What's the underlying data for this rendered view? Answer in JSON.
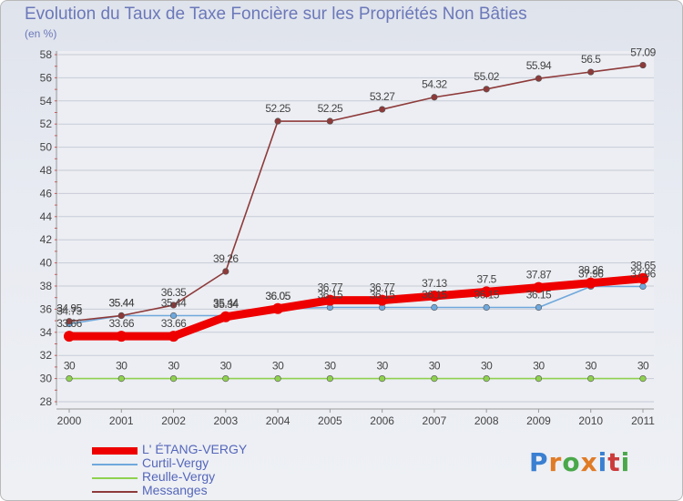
{
  "title": "Evolution du Taux de Taxe Foncière sur les Propriétés Non Bâties",
  "unit": "(en %)",
  "logo": [
    "P",
    "r",
    "o",
    "x",
    "i",
    "t",
    "i"
  ],
  "logo_colors": [
    "#3a7fd1",
    "#e07b26",
    "#4aa84a",
    "#e07b26",
    "#3a7fd1",
    "#cc3b3b",
    "#4aa84a"
  ],
  "chart_data": {
    "type": "line",
    "title": "Evolution du Taux de Taxe Foncière sur les Propriétés Non Bâties",
    "ylabel": "(en %)",
    "x": [
      "2000",
      "2001",
      "2002",
      "2003",
      "2004",
      "2005",
      "2006",
      "2007",
      "2008",
      "2009",
      "2010",
      "2011"
    ],
    "ylim": [
      28,
      58
    ],
    "yticks": [
      "28",
      "30",
      "32",
      "34",
      "36",
      "38",
      "40",
      "42",
      "44",
      "46",
      "48",
      "50",
      "52",
      "54",
      "56",
      "58"
    ],
    "series": [
      {
        "name": "Reulle-Vergy",
        "color": "#8fd14f",
        "values": [
          30,
          30,
          30,
          30,
          30,
          30,
          30,
          30,
          30,
          30,
          30,
          30
        ],
        "labels": [
          "30",
          "30",
          "30",
          "30",
          "30",
          "30",
          "30",
          "30",
          "30",
          "30",
          "30",
          "30"
        ]
      },
      {
        "name": "Curtil-Vergy",
        "color": "#6fa8dc",
        "values": [
          34.73,
          35.44,
          35.44,
          35.44,
          36.05,
          36.15,
          36.15,
          36.15,
          36.15,
          36.15,
          37.96,
          37.96
        ],
        "labels": [
          "34.73",
          "35.44",
          "35.44",
          "35.44",
          "36.05",
          "36.15",
          "36.15",
          "36.15",
          "36.15",
          "36.15",
          "37.96",
          "37.96"
        ]
      },
      {
        "name": "Messanges",
        "color": "#8e3a3a",
        "values": [
          34.95,
          35.44,
          36.35,
          39.26,
          52.25,
          52.25,
          53.27,
          54.32,
          55.02,
          55.94,
          56.5,
          57.09
        ],
        "labels": [
          "34.95",
          "35.44",
          "36.35",
          "39.26",
          "52.25",
          "52.25",
          "53.27",
          "54.32",
          "55.02",
          "55.94",
          "56.5",
          "57.09"
        ]
      },
      {
        "name": "L' ÉTANG-VERGY",
        "color": "#ee0000",
        "values": [
          33.66,
          33.66,
          33.66,
          35.34,
          36.05,
          36.77,
          36.77,
          37.13,
          37.5,
          37.87,
          38.26,
          38.65
        ],
        "labels": [
          "33.66",
          "33.66",
          "33.66",
          "35.34",
          "36.05",
          "36.77",
          "36.77",
          "37.13",
          "37.5",
          "37.87",
          "38.26",
          "38.65"
        ]
      }
    ],
    "legend": [
      "L' ÉTANG-VERGY",
      "Curtil-Vergy",
      "Reulle-Vergy",
      "Messanges"
    ]
  }
}
